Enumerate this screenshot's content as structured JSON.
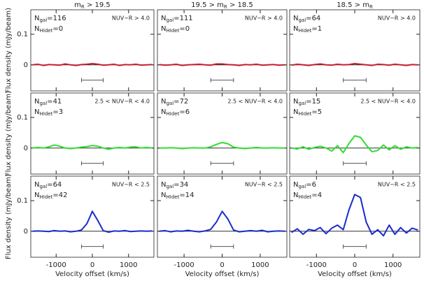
{
  "annotation_parts": {
    "n": "N",
    "gal": "gal",
    "hidet": "HIdet",
    "eq": "="
  },
  "chart_data": [
    {
      "type": "line",
      "title": {
        "pre": "m",
        "sub": "R",
        "post": " > 19.5"
      },
      "annotation": "NUV−R > 4.0",
      "n_gal": 116,
      "n_hidet": 0,
      "ylabel": "Flux density (mJy/beam)",
      "xlim": [
        -1700,
        1700
      ],
      "ylim": [
        -0.085,
        0.18
      ],
      "xticks": [
        -1000,
        0,
        1000
      ],
      "yticks": [
        0,
        0.1
      ],
      "x": [
        -1650,
        -1500,
        -1350,
        -1200,
        -1050,
        -900,
        -750,
        -600,
        -450,
        -300,
        -150,
        0,
        150,
        300,
        450,
        600,
        750,
        900,
        1050,
        1200,
        1350,
        1500,
        1650
      ],
      "series": [
        {
          "color": "#c42030",
          "values": [
            0,
            0.002,
            -0.002,
            0.001,
            0,
            -0.001,
            0.003,
            0,
            -0.002,
            0.001,
            0.002,
            0.004,
            0.002,
            -0.001,
            0,
            0.002,
            -0.002,
            0.001,
            0,
            0.002,
            -0.001,
            0,
            0.001
          ]
        }
      ],
      "window": [
        -300,
        300
      ],
      "window_level": -0.05
    },
    {
      "type": "line",
      "title": {
        "pre": "19.5 > m",
        "sub": "R",
        "post": " > 18.5"
      },
      "annotation": "NUV−R > 4.0",
      "n_gal": 111,
      "n_hidet": 0,
      "xlim": [
        -1700,
        1700
      ],
      "ylim": [
        -0.085,
        0.18
      ],
      "xticks": [
        -1000,
        0,
        1000
      ],
      "yticks": [
        0,
        0.1
      ],
      "x": [
        -1650,
        -1500,
        -1350,
        -1200,
        -1050,
        -900,
        -750,
        -600,
        -450,
        -300,
        -150,
        0,
        150,
        300,
        450,
        600,
        750,
        900,
        1050,
        1200,
        1350,
        1500,
        1650
      ],
      "series": [
        {
          "color": "#c42030",
          "values": [
            0.001,
            -0.001,
            0,
            0.002,
            -0.002,
            0,
            0.001,
            0.002,
            0,
            -0.001,
            0.003,
            0.003,
            0.001,
            0,
            -0.002,
            0.001,
            0,
            0.002,
            -0.001,
            0,
            0.001,
            -0.001,
            0
          ]
        }
      ],
      "window": [
        -300,
        300
      ],
      "window_level": -0.05
    },
    {
      "type": "line",
      "title": {
        "pre": "18.5 > m",
        "sub": "R"
      },
      "annotation": "NUV−R > 4.0",
      "n_gal": 64,
      "n_hidet": 1,
      "xlim": [
        -1700,
        1700
      ],
      "ylim": [
        -0.085,
        0.18
      ],
      "xticks": [
        -1000,
        0,
        1000
      ],
      "yticks": [
        0,
        0.1
      ],
      "x": [
        -1650,
        -1500,
        -1350,
        -1200,
        -1050,
        -900,
        -750,
        -600,
        -450,
        -300,
        -150,
        0,
        150,
        300,
        450,
        600,
        750,
        900,
        1050,
        1200,
        1350,
        1500,
        1650
      ],
      "series": [
        {
          "color": "#c42030",
          "values": [
            -0.001,
            0.002,
            0,
            -0.002,
            0.001,
            0.003,
            0,
            -0.001,
            0.002,
            0,
            0.001,
            0.004,
            0.002,
            0,
            -0.002,
            0.002,
            0.001,
            -0.001,
            0.002,
            0,
            -0.002,
            0.001,
            0
          ]
        }
      ],
      "window": [
        -300,
        300
      ],
      "window_level": -0.05
    },
    {
      "type": "line",
      "annotation": "2.5 < NUV−R < 4.0",
      "n_gal": 41,
      "n_hidet": 3,
      "ylabel": "Flux density (mJy/beam)",
      "xlim": [
        -1700,
        1700
      ],
      "ylim": [
        -0.085,
        0.18
      ],
      "xticks": [
        -1000,
        0,
        1000
      ],
      "yticks": [
        0,
        0.1
      ],
      "x": [
        -1650,
        -1500,
        -1350,
        -1200,
        -1050,
        -900,
        -750,
        -600,
        -450,
        -300,
        -150,
        0,
        150,
        300,
        450,
        600,
        750,
        900,
        1050,
        1200,
        1350,
        1500,
        1650
      ],
      "series": [
        {
          "color": "#30dd30",
          "values": [
            0,
            0.002,
            0,
            0.004,
            0.01,
            0.006,
            0,
            -0.002,
            0,
            0.003,
            0.005,
            0.008,
            0.006,
            0,
            -0.004,
            0,
            0.002,
            0,
            0.003,
            0.004,
            0,
            0.002,
            0
          ]
        }
      ],
      "window": [
        -300,
        300
      ],
      "window_level": -0.05
    },
    {
      "type": "line",
      "annotation": "2.5 < NUV−R < 4.0",
      "n_gal": 72,
      "n_hidet": 6,
      "xlim": [
        -1700,
        1700
      ],
      "ylim": [
        -0.085,
        0.18
      ],
      "xticks": [
        -1000,
        0,
        1000
      ],
      "yticks": [
        0,
        0.1
      ],
      "x": [
        -1650,
        -1500,
        -1350,
        -1200,
        -1050,
        -900,
        -750,
        -600,
        -450,
        -300,
        -150,
        0,
        150,
        300,
        450,
        600,
        750,
        900,
        1050,
        1200,
        1350,
        1500,
        1650
      ],
      "series": [
        {
          "color": "#30dd30",
          "values": [
            0,
            0,
            0.001,
            0,
            -0.002,
            0,
            0.001,
            0,
            0,
            0.004,
            0.012,
            0.018,
            0.014,
            0.003,
            0,
            -0.002,
            0,
            0.002,
            0,
            0,
            0.001,
            0,
            0
          ]
        }
      ],
      "window": [
        -300,
        300
      ],
      "window_level": -0.05
    },
    {
      "type": "line",
      "annotation": "2.5 < NUV−R < 4.0",
      "n_gal": 15,
      "n_hidet": 5,
      "xlim": [
        -1700,
        1700
      ],
      "ylim": [
        -0.085,
        0.18
      ],
      "xticks": [
        -1000,
        0,
        1000
      ],
      "yticks": [
        0,
        0.1
      ],
      "x": [
        -1650,
        -1500,
        -1350,
        -1200,
        -1050,
        -900,
        -750,
        -600,
        -450,
        -300,
        -150,
        0,
        150,
        300,
        450,
        600,
        750,
        900,
        1050,
        1200,
        1350,
        1500,
        1650
      ],
      "series": [
        {
          "color": "#30dd30",
          "values": [
            0,
            -0.003,
            0.004,
            -0.004,
            0.002,
            0.006,
            0,
            -0.01,
            0.008,
            -0.015,
            0.015,
            0.04,
            0.035,
            0.01,
            -0.012,
            -0.008,
            0.01,
            -0.006,
            0.008,
            -0.004,
            0.004,
            0,
            0.002
          ]
        }
      ],
      "window": [
        -300,
        300
      ],
      "window_level": -0.05
    },
    {
      "type": "line",
      "annotation": "NUV−R < 2.5",
      "n_gal": 64,
      "n_hidet": 42,
      "ylabel": "Flux density (mJy/beam)",
      "xlabel": "Velocity offset (km/s)",
      "xlim": [
        -1700,
        1700
      ],
      "ylim": [
        -0.085,
        0.18
      ],
      "xticks": [
        -1000,
        0,
        1000
      ],
      "yticks": [
        0,
        0.1
      ],
      "x": [
        -1650,
        -1500,
        -1350,
        -1200,
        -1050,
        -900,
        -750,
        -600,
        -450,
        -300,
        -150,
        0,
        150,
        300,
        450,
        600,
        750,
        900,
        1050,
        1200,
        1350,
        1500,
        1650
      ],
      "series": [
        {
          "color": "#1a2ccc",
          "values": [
            0,
            0.001,
            0,
            -0.001,
            0.002,
            0,
            0.001,
            -0.002,
            0,
            0.004,
            0.025,
            0.065,
            0.035,
            0.002,
            -0.003,
            0.001,
            0,
            0.002,
            -0.001,
            0,
            0.001,
            0,
            0.001
          ]
        }
      ],
      "window": [
        -300,
        300
      ],
      "window_level": -0.05
    },
    {
      "type": "line",
      "annotation": "NUV−R < 2.5",
      "n_gal": 34,
      "n_hidet": 14,
      "xlabel": "Velocity offset (km/s)",
      "xlim": [
        -1700,
        1700
      ],
      "ylim": [
        -0.085,
        0.18
      ],
      "xticks": [
        -1000,
        0,
        1000
      ],
      "yticks": [
        0,
        0.1
      ],
      "x": [
        -1650,
        -1500,
        -1350,
        -1200,
        -1050,
        -900,
        -750,
        -600,
        -450,
        -300,
        -150,
        0,
        150,
        300,
        450,
        600,
        750,
        900,
        1050,
        1200,
        1350,
        1500,
        1650
      ],
      "series": [
        {
          "color": "#1a2ccc",
          "values": [
            0,
            0.002,
            -0.002,
            0.001,
            0,
            0.003,
            0,
            -0.002,
            0.001,
            0.006,
            0.03,
            0.065,
            0.04,
            0.004,
            -0.002,
            0,
            0.002,
            0,
            0.003,
            -0.002,
            0,
            0.001,
            0
          ]
        }
      ],
      "window": [
        -300,
        300
      ],
      "window_level": -0.05
    },
    {
      "type": "line",
      "annotation": "NUV−R < 2.5",
      "n_gal": 6,
      "n_hidet": 4,
      "xlabel": "Velocity offset (km/s)",
      "xlim": [
        -1700,
        1700
      ],
      "ylim": [
        -0.085,
        0.18
      ],
      "xticks": [
        -1000,
        0,
        1000
      ],
      "yticks": [
        0,
        0.1
      ],
      "x": [
        -1650,
        -1500,
        -1350,
        -1200,
        -1050,
        -900,
        -750,
        -600,
        -450,
        -300,
        -150,
        0,
        150,
        300,
        450,
        600,
        750,
        900,
        1050,
        1200,
        1350,
        1500,
        1650
      ],
      "series": [
        {
          "color": "#1a2ccc",
          "values": [
            -0.004,
            0.008,
            -0.01,
            0.006,
            0.002,
            0.012,
            -0.008,
            0.01,
            0.02,
            0.005,
            0.07,
            0.12,
            0.11,
            0.03,
            -0.01,
            0.005,
            -0.015,
            0.02,
            -0.01,
            0.012,
            -0.006,
            0.01,
            0.004
          ]
        }
      ],
      "window": [
        -300,
        300
      ],
      "window_level": -0.05
    }
  ]
}
